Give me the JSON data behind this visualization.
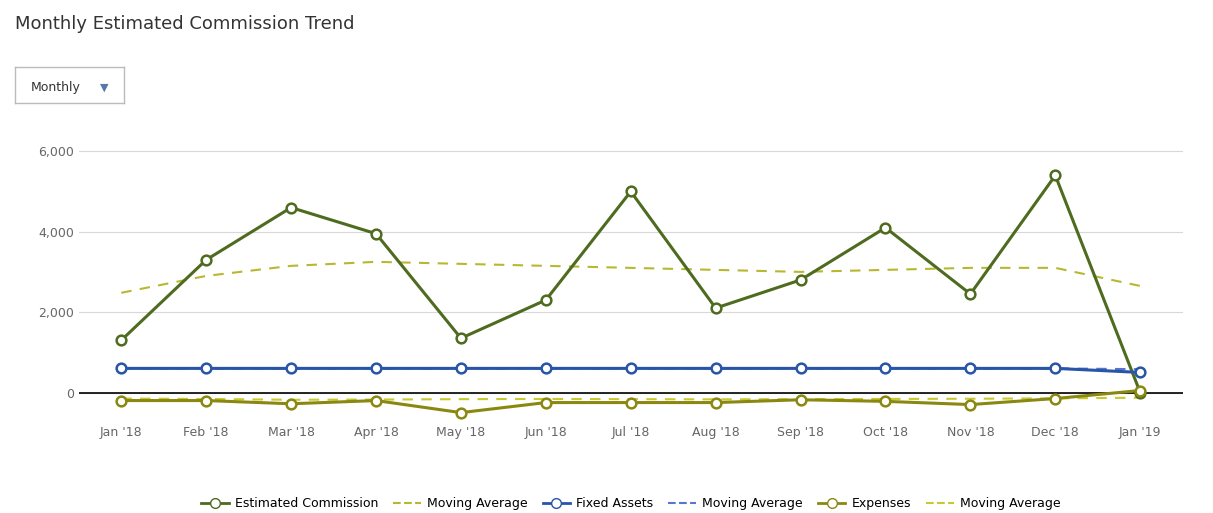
{
  "title": "Monthly Estimated Commission Trend",
  "months": [
    "Jan '18",
    "Feb '18",
    "Mar '18",
    "Apr '18",
    "May '18",
    "Jun '18",
    "Jul '18",
    "Aug '18",
    "Sep '18",
    "Oct '18",
    "Nov '18",
    "Dec '18",
    "Jan '19"
  ],
  "estimated_commission": [
    1300,
    3300,
    4600,
    3950,
    1350,
    2300,
    5000,
    2100,
    2800,
    4100,
    2450,
    5400,
    0
  ],
  "est_comm_moving_avg": [
    2480,
    2900,
    3150,
    3250,
    3200,
    3150,
    3100,
    3050,
    3000,
    3050,
    3100,
    3100,
    2650
  ],
  "fixed_assets": [
    600,
    600,
    600,
    600,
    600,
    600,
    600,
    600,
    600,
    600,
    600,
    600,
    500
  ],
  "fixed_assets_moving_avg": [
    600,
    600,
    600,
    600,
    600,
    600,
    600,
    600,
    600,
    600,
    600,
    600,
    580
  ],
  "expenses": [
    -200,
    -200,
    -280,
    -200,
    -500,
    -250,
    -250,
    -250,
    -180,
    -220,
    -300,
    -150,
    50
  ],
  "expenses_moving_avg": [
    -150,
    -160,
    -180,
    -175,
    -165,
    -160,
    -165,
    -170,
    -165,
    -160,
    -155,
    -145,
    -130
  ],
  "ylim": [
    -700,
    6700
  ],
  "yticks": [
    0,
    2000,
    4000,
    6000
  ],
  "bg_color": "#ffffff",
  "grid_color": "#d8d8d8",
  "ec_color": "#4e6b1f",
  "ec_ma_color": "#b8b830",
  "fa_color": "#2855a8",
  "fa_ma_color": "#5577cc",
  "exp_color": "#8a8810",
  "exp_ma_color": "#c8c830",
  "title_fontsize": 13,
  "axis_fontsize": 9,
  "legend_fontsize": 9
}
